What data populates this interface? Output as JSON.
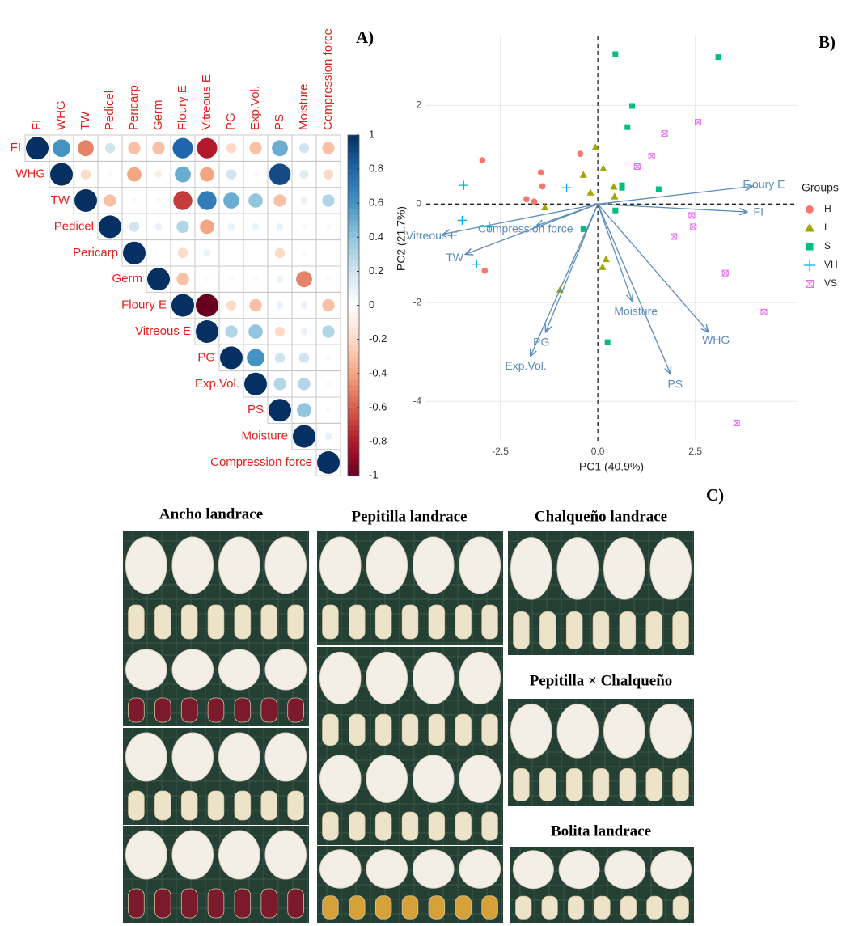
{
  "chart_data": [
    {
      "type": "corrplot",
      "label": "A)",
      "variables": [
        "FI",
        "WHG",
        "TW",
        "Pedicel",
        "Pericarp",
        "Germ",
        "Floury E",
        "Vitreous E",
        "PG",
        "Exp.Vol.",
        "PS",
        "Moisture",
        "Compression force"
      ],
      "values": [
        [
          1,
          0.6,
          -0.5,
          0.2,
          -0.3,
          -0.3,
          0.8,
          -0.8,
          -0.2,
          -0.3,
          0.5,
          0.2,
          -0.3
        ],
        [
          1,
          -0.2,
          0.05,
          -0.4,
          -0.1,
          0.5,
          -0.4,
          0.2,
          0.05,
          0.9,
          0.15,
          -0.2
        ],
        [
          1,
          -0.3,
          -0.05,
          -0.05,
          -0.7,
          0.7,
          0.5,
          0.4,
          -0.3,
          0.1,
          0.3
        ],
        [
          1,
          0.2,
          0.1,
          0.3,
          -0.4,
          0.1,
          0.1,
          0.1,
          0.05,
          0.05
        ],
        [
          1,
          0,
          -0.2,
          0.1,
          0,
          0,
          -0.2,
          0.05,
          0
        ],
        [
          1,
          -0.3,
          0.05,
          0.05,
          0.05,
          0.1,
          -0.5,
          0.05
        ],
        [
          1,
          -1,
          -0.2,
          -0.3,
          0.1,
          0.1,
          -0.3
        ],
        [
          1,
          0.3,
          0.4,
          -0.2,
          0.1,
          0.3
        ],
        [
          1,
          0.6,
          0.2,
          0.2,
          0.05
        ],
        [
          1,
          0.3,
          0.3,
          0.05
        ],
        [
          1,
          0.4,
          0.05
        ],
        [
          1,
          0.1
        ],
        [
          1
        ]
      ],
      "zlim": [
        -1,
        1
      ],
      "zticks": [
        1,
        0.8,
        0.6,
        0.4,
        0.2,
        0,
        -0.2,
        -0.4,
        -0.6,
        -0.8,
        -1
      ],
      "colorscale": [
        "#67001f",
        "#b2182b",
        "#d6604d",
        "#f4a582",
        "#fddbc7",
        "#ffffff",
        "#d1e5f0",
        "#92c5de",
        "#4393c3",
        "#2166ac",
        "#053061"
      ]
    },
    {
      "type": "biplot",
      "label": "B)",
      "xlabel": "PC1 (40.9%)",
      "ylabel": "PC2 (21.7%)",
      "xlim": [
        -4.4,
        5.1
      ],
      "ylim": [
        -4.8,
        3.4
      ],
      "xticks": [
        -2.5,
        {
          "value": 0,
          "label": "0.0"
        },
        2.5
      ],
      "yticks": [
        -4,
        -2,
        0,
        2
      ],
      "grid": true,
      "legend_title": "Groups",
      "series": [
        {
          "name": "H",
          "color": "#f8766d",
          "marker": "circle",
          "x": [
            -2.96,
            -1.83,
            -1.46,
            -1.42,
            -0.45,
            -2.9,
            -1.63
          ],
          "y": [
            0.89,
            0.1,
            0.64,
            0.36,
            1.02,
            -1.35,
            0.05
          ]
        },
        {
          "name": "I",
          "color": "#a3a500",
          "marker": "triangle",
          "x": [
            -0.06,
            0.14,
            -0.37,
            -0.19,
            0.41,
            0.43,
            -1.36,
            0.21,
            0.12,
            -0.97
          ],
          "y": [
            1.15,
            0.72,
            0.59,
            0.23,
            0.35,
            0.15,
            -0.07,
            -1.12,
            -1.28,
            -1.74
          ]
        },
        {
          "name": "S",
          "color": "#00bf7d",
          "marker": "square",
          "x": [
            0.45,
            3.09,
            0.88,
            0.76,
            1.56,
            0.62,
            0.62,
            0.45,
            -0.37,
            0.25
          ],
          "y": [
            3.04,
            2.98,
            1.99,
            1.56,
            0.3,
            0.38,
            0.33,
            -0.13,
            -0.51,
            -2.8
          ]
        },
        {
          "name": "VH",
          "color": "#00b0f6",
          "marker": "plus",
          "x": [
            -3.44,
            -3.48,
            -2.78,
            -0.8,
            -3.11
          ],
          "y": [
            0.38,
            -0.33,
            -0.46,
            0.33,
            -1.22
          ]
        },
        {
          "name": "VS",
          "color": "#e76bf3",
          "marker": "boxx",
          "x": [
            1.71,
            2.57,
            1.38,
            1.01,
            2.41,
            2.45,
            1.95,
            3.27,
            4.26,
            3.56
          ],
          "y": [
            1.43,
            1.66,
            0.97,
            0.76,
            -0.23,
            -0.46,
            -0.66,
            -1.4,
            -2.19,
            -4.44
          ]
        }
      ],
      "vectors": {
        "color": "#5a8cbc",
        "items": [
          {
            "name": "Floury E",
            "x": 3.97,
            "y": 0.36
          },
          {
            "name": "FI",
            "x": 3.83,
            "y": -0.16
          },
          {
            "name": "Compression force",
            "x": -1.58,
            "y": -0.44
          },
          {
            "name": "Vitreous E",
            "x": -3.97,
            "y": -0.61
          },
          {
            "name": "TW",
            "x": -3.4,
            "y": -1.02
          },
          {
            "name": "Moisture",
            "x": 0.88,
            "y": -1.97
          },
          {
            "name": "WHG",
            "x": 2.84,
            "y": -2.6
          },
          {
            "name": "PS",
            "x": 1.87,
            "y": -3.45
          },
          {
            "name": "PG",
            "x": -1.34,
            "y": -2.6
          },
          {
            "name": "Exp.Vol.",
            "x": -1.73,
            "y": -3.09
          }
        ]
      }
    }
  ],
  "panel_c": {
    "label": "C)",
    "titles": [
      "Ancho landrace",
      "Pepitilla landrace",
      "Chalqueño landrace",
      "Pepitilla × Chalqueño",
      "Bolita landrace"
    ]
  }
}
